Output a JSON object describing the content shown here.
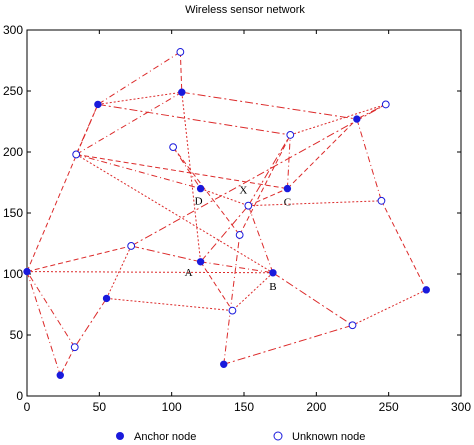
{
  "chart_data": {
    "type": "scatter",
    "title": "Wireless sensor network",
    "xlabel": "",
    "ylabel": "",
    "xlim": [
      0,
      300
    ],
    "ylim": [
      0,
      300
    ],
    "xticks": [
      "0",
      "50",
      "100",
      "150",
      "200",
      "250",
      "300"
    ],
    "yticks": [
      "0",
      "50",
      "100",
      "150",
      "200",
      "250",
      "300"
    ],
    "grid": false,
    "legend_position": "bottom",
    "colors": {
      "node": "#1a1adc",
      "edge": "#dc2a2a"
    },
    "series": [
      {
        "name": "Anchor node",
        "marker": "filled-circle",
        "points": [
          {
            "id": "a0",
            "x": 0,
            "y": 102
          },
          {
            "id": "a1",
            "x": 23,
            "y": 17
          },
          {
            "id": "a2",
            "x": 55,
            "y": 80
          },
          {
            "id": "a3",
            "x": 49,
            "y": 239
          },
          {
            "id": "a4",
            "x": 107,
            "y": 249
          },
          {
            "id": "A",
            "x": 120,
            "y": 110
          },
          {
            "id": "D",
            "x": 120,
            "y": 170
          },
          {
            "id": "B",
            "x": 170,
            "y": 101
          },
          {
            "id": "C",
            "x": 180,
            "y": 170
          },
          {
            "id": "a9",
            "x": 228,
            "y": 227
          },
          {
            "id": "a10",
            "x": 276,
            "y": 87
          },
          {
            "id": "a11",
            "x": 136,
            "y": 26
          }
        ]
      },
      {
        "name": "Unknown node",
        "marker": "open-circle",
        "points": [
          {
            "id": "u0",
            "x": 33,
            "y": 40
          },
          {
            "id": "u1",
            "x": 34,
            "y": 198
          },
          {
            "id": "u2",
            "x": 72,
            "y": 123
          },
          {
            "id": "u3",
            "x": 106,
            "y": 282
          },
          {
            "id": "u4",
            "x": 101,
            "y": 204
          },
          {
            "id": "u5",
            "x": 142,
            "y": 70
          },
          {
            "id": "u6",
            "x": 147,
            "y": 132
          },
          {
            "id": "X",
            "x": 153,
            "y": 156
          },
          {
            "id": "u8",
            "x": 182,
            "y": 214
          },
          {
            "id": "u9",
            "x": 225,
            "y": 58
          },
          {
            "id": "u10",
            "x": 245,
            "y": 160
          },
          {
            "id": "u11",
            "x": 248,
            "y": 239
          }
        ]
      }
    ],
    "edges": [
      [
        "a0",
        "a1"
      ],
      [
        "a0",
        "a3"
      ],
      [
        "a3",
        "a4"
      ],
      [
        "a3",
        "u1"
      ],
      [
        "u1",
        "a4"
      ],
      [
        "a0",
        "u2"
      ],
      [
        "u2",
        "a2"
      ],
      [
        "a2",
        "u0"
      ],
      [
        "u0",
        "a0"
      ],
      [
        "u0",
        "a1"
      ],
      [
        "a2",
        "u5"
      ],
      [
        "u2",
        "A"
      ],
      [
        "u1",
        "D"
      ],
      [
        "u1",
        "C"
      ],
      [
        "u1",
        "B"
      ],
      [
        "a3",
        "u8"
      ],
      [
        "u3",
        "a3"
      ],
      [
        "u3",
        "a4"
      ],
      [
        "a4",
        "A"
      ],
      [
        "a4",
        "a9"
      ],
      [
        "u4",
        "D"
      ],
      [
        "u4",
        "u6"
      ],
      [
        "D",
        "X"
      ],
      [
        "A",
        "X"
      ],
      [
        "A",
        "B"
      ],
      [
        "A",
        "u5"
      ],
      [
        "B",
        "u5"
      ],
      [
        "B",
        "u9"
      ],
      [
        "B",
        "X"
      ],
      [
        "X",
        "C"
      ],
      [
        "X",
        "u10"
      ],
      [
        "X",
        "u8"
      ],
      [
        "C",
        "u8"
      ],
      [
        "C",
        "a9"
      ],
      [
        "u8",
        "u11"
      ],
      [
        "a9",
        "u11"
      ],
      [
        "a9",
        "u10"
      ],
      [
        "u10",
        "a10"
      ],
      [
        "a10",
        "u9"
      ],
      [
        "u9",
        "a11"
      ],
      [
        "a11",
        "u6"
      ],
      [
        "u6",
        "u8"
      ],
      [
        "a0",
        "B"
      ],
      [
        "u2",
        "u11"
      ]
    ],
    "annotations": [
      {
        "text": "A",
        "at": "A"
      },
      {
        "text": "B",
        "at": "B"
      },
      {
        "text": "C",
        "at": "C"
      },
      {
        "text": "D",
        "at": "D"
      },
      {
        "text": "X",
        "at": "X"
      }
    ]
  }
}
